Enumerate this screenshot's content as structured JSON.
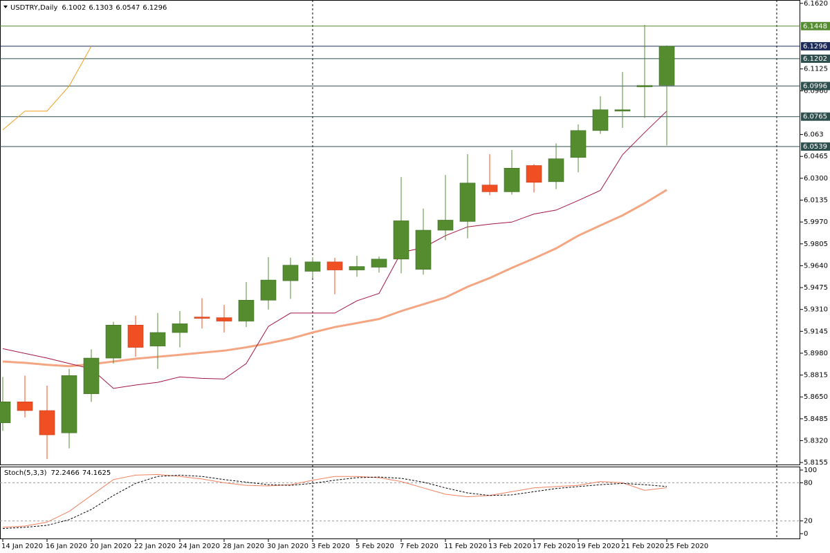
{
  "chart_data": [
    {
      "type": "candlestick",
      "title": "USDTRY,Daily",
      "header_values": [
        6.1002,
        6.1303,
        6.0547,
        6.1296
      ],
      "categories": [
        "14 Jan 2020",
        null,
        "16 Jan 2020",
        null,
        "20 Jan 2020",
        null,
        "22 Jan 2020",
        null,
        "24 Jan 2020",
        null,
        "28 Jan 2020",
        null,
        "30 Jan 2020",
        null,
        "3 Feb 2020",
        null,
        "5 Feb 2020",
        null,
        "7 Feb 2020",
        null,
        "11 Feb 2020",
        null,
        "13 Feb 2020",
        null,
        "17 Feb 2020",
        null,
        "19 Feb 2020",
        null,
        "21 Feb 2020",
        null,
        "25 Feb 2020"
      ],
      "open": [
        5.8455,
        5.8613,
        5.8547,
        5.8379,
        5.8674,
        5.8943,
        5.9192,
        5.9034,
        5.9136,
        5.9253,
        5.9248,
        5.9222,
        5.938,
        5.9527,
        5.9598,
        5.9669,
        5.9608,
        5.9629,
        5.969,
        5.9613,
        5.9908,
        5.9974,
        6.0249,
        6.0198,
        6.0396,
        6.0274,
        6.0457,
        6.066,
        6.0807,
        6.099,
        6.1002
      ],
      "high": [
        5.8801,
        5.8811,
        5.8735,
        5.8862,
        5.9009,
        5.9217,
        5.9263,
        5.9283,
        5.9298,
        5.9395,
        5.9344,
        5.9517,
        5.9705,
        5.97,
        5.9705,
        5.97,
        5.9715,
        5.971,
        6.0309,
        6.0071,
        6.0325,
        6.0482,
        6.0482,
        6.0513,
        6.0406,
        6.0563,
        6.0706,
        6.0919,
        6.1102,
        6.1457,
        6.1303
      ],
      "low": [
        5.8394,
        5.8496,
        5.8181,
        5.8262,
        5.8613,
        5.8902,
        5.8953,
        5.8862,
        5.9024,
        5.9166,
        5.9136,
        5.9177,
        5.9309,
        5.939,
        5.9547,
        5.9425,
        5.9557,
        5.9588,
        5.9583,
        5.9573,
        5.9832,
        5.9847,
        6.0172,
        6.0177,
        6.0193,
        6.0218,
        6.0345,
        6.0635,
        6.068,
        6.0756,
        6.0547
      ],
      "close": [
        5.8613,
        5.8547,
        5.8364,
        5.8811,
        5.8943,
        5.9192,
        5.9024,
        5.9136,
        5.9202,
        5.9243,
        5.9222,
        5.938,
        5.9532,
        5.9644,
        5.9669,
        5.9608,
        5.9634,
        5.969,
        5.9979,
        5.9908,
        5.9984,
        6.0264,
        6.0198,
        6.0376,
        6.0269,
        6.0447,
        6.066,
        6.0817,
        6.0817,
        6.1,
        6.1296
      ],
      "up_color": "#548c2f",
      "down_color": "#f04e23",
      "ylim": [
        5.814,
        6.1645
      ],
      "yticks": [
        {
          "value": 6.162,
          "label": "6.1620"
        },
        6.1125,
        {
          "value": 6.096,
          "label": "6.0960"
        },
        6.063,
        6.0465,
        {
          "value": 6.03,
          "label": "6.0300"
        },
        6.0135,
        {
          "value": 5.997,
          "label": "5.9970"
        },
        5.9805,
        {
          "value": 5.964,
          "label": "5.9640"
        },
        5.9475,
        {
          "value": 5.931,
          "label": "5.9310"
        },
        5.9145,
        {
          "value": 5.898,
          "label": "5.8980"
        },
        5.8815,
        {
          "value": 5.865,
          "label": "5.8650"
        },
        5.8485,
        {
          "value": 5.832,
          "label": "5.8320"
        },
        5.8155
      ],
      "levels": [
        {
          "value": 6.1448,
          "color": "#548c2f"
        },
        {
          "value": 6.1296,
          "color": "#1c2a5a"
        },
        {
          "value": 6.1202,
          "color": "#2f4f4f"
        },
        {
          "value": 6.0996,
          "color": "#2f4f4f"
        },
        {
          "value": 6.0765,
          "color": "#2f4f4f"
        },
        {
          "value": 6.0539,
          "color": "#2f4f4f"
        }
      ],
      "overlays": [
        {
          "color": "#f4a582",
          "width": 3,
          "values": [
            5.8917,
            5.8907,
            5.8892,
            5.8882,
            5.8897,
            5.8917,
            5.8938,
            5.8953,
            5.8968,
            5.8984,
            5.8999,
            5.9024,
            5.9055,
            5.909,
            5.9136,
            5.9177,
            5.9207,
            5.9238,
            5.9298,
            5.9349,
            5.94,
            5.9481,
            5.9547,
            5.9624,
            5.9695,
            5.9771,
            5.9867,
            5.9944,
            6.002,
            6.0111,
            6.0213
          ]
        },
        {
          "color": "#a0153e",
          "width": 1,
          "values": [
            5.9014,
            5.8978,
            5.8943,
            5.8902,
            5.8862,
            5.8714,
            5.874,
            5.876,
            5.8801,
            5.879,
            5.8785,
            5.8902,
            5.9182,
            5.9283,
            5.9283,
            5.9283,
            5.9375,
            5.9431,
            5.974,
            5.9776,
            5.9867,
            5.9933,
            5.9954,
            5.9969,
            6.003,
            6.006,
            6.0132,
            6.0208,
            6.0477,
            6.0645,
            6.0807
          ]
        },
        {
          "color": "#f0a020",
          "width": 1,
          "values": [
            6.0665,
            6.0807,
            6.0807,
            6.0996,
            6.1296,
            null,
            null,
            null,
            null,
            null,
            null,
            null,
            null,
            null,
            null,
            null,
            null,
            null,
            null,
            null,
            null,
            null,
            null,
            null,
            null,
            null,
            null,
            null,
            null,
            null,
            null
          ]
        }
      ]
    },
    {
      "type": "line",
      "title": "Stoch(5,3,3)",
      "header_values": [
        72.2466,
        74.1625
      ],
      "ylim": [
        0,
        100
      ],
      "yticks": [
        0,
        20,
        80,
        100
      ],
      "levels": [
        20,
        80
      ],
      "series": [
        {
          "color": "#f08060",
          "dashed": false,
          "values": [
            10,
            12,
            18,
            35,
            60,
            85,
            92,
            93,
            90,
            86,
            80,
            76,
            75,
            77,
            84,
            90,
            90,
            88,
            82,
            72,
            62,
            58,
            60,
            66,
            72,
            74,
            76,
            82,
            80,
            68,
            72.2466
          ]
        },
        {
          "color": "#000000",
          "dashed": true,
          "values": [
            8,
            10,
            13,
            22,
            38,
            60,
            79,
            90,
            92,
            90,
            85,
            81,
            77,
            76,
            79,
            84,
            88,
            89,
            87,
            81,
            72,
            64,
            60,
            61,
            66,
            71,
            74,
            77,
            79,
            77,
            74.1625
          ]
        }
      ]
    }
  ]
}
